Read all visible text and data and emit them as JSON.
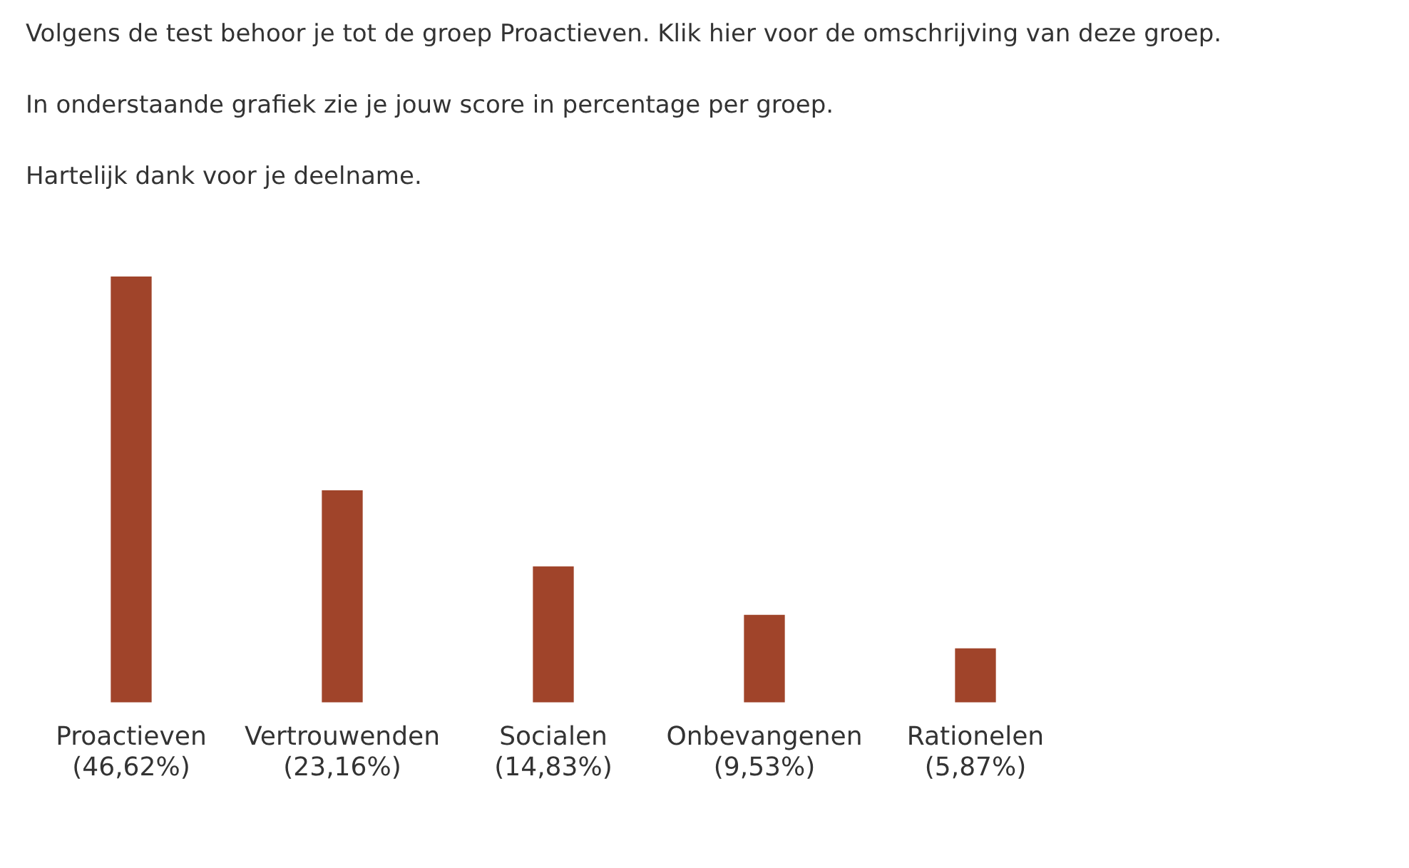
{
  "chart_data": {
    "type": "bar",
    "title": "Volgens de test behoor je tot de groep Proactieven. Klik hier voor de omschrijving van deze groep.",
    "subtitle": "In onderstaande grafiek zie je jouw score in percentage per groep.",
    "annotations": [
      "Hartelijk dank voor je deelname."
    ],
    "categories": [
      "Proactieven",
      "Vertrouwenden",
      "Socialen",
      "Onbevangenen",
      "Rationelen"
    ],
    "values": [
      46.62,
      23.16,
      14.83,
      9.53,
      5.87
    ],
    "value_labels": [
      "(46,62%)",
      "(23,16%)",
      "(14,83%)",
      "(9,53%)",
      "(5,87%)"
    ],
    "color": "#a0442a",
    "grid": false,
    "legend": false
  }
}
